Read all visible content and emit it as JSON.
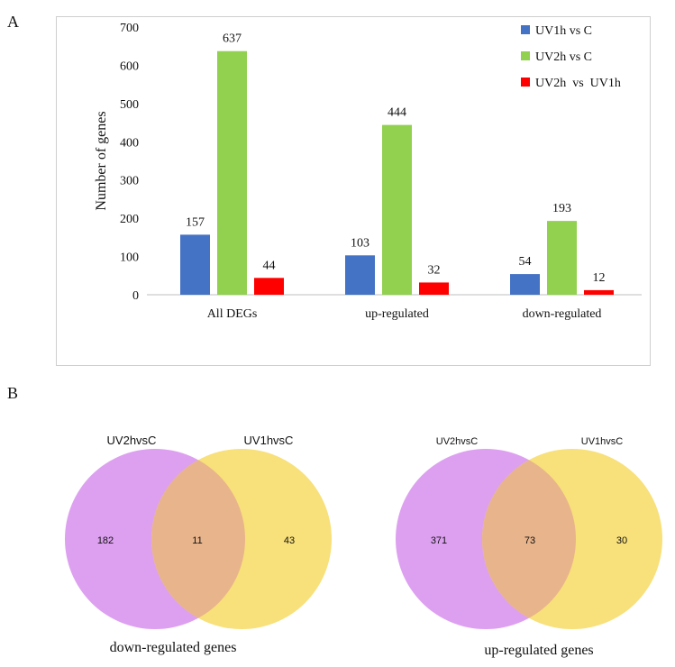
{
  "panel_labels": {
    "a": "A",
    "b": "B"
  },
  "chart_data": [
    {
      "type": "bar",
      "title": "",
      "xlabel": "",
      "ylabel": "Number of genes",
      "ylim": [
        0,
        700
      ],
      "yticks": [
        0,
        100,
        200,
        300,
        400,
        500,
        600,
        700
      ],
      "categories": [
        "All DEGs",
        "up-regulated",
        "down-regulated"
      ],
      "series": [
        {
          "name": "UV1h vs C",
          "color": "#4472C4",
          "values": [
            157,
            103,
            54
          ]
        },
        {
          "name": "UV2h vs C",
          "color": "#92D050",
          "values": [
            637,
            444,
            193
          ]
        },
        {
          "name": "UV2h  vs  UV1h",
          "color": "#FF0000",
          "values": [
            44,
            32,
            12
          ]
        }
      ],
      "legend": "top-right",
      "data_labels": true
    },
    {
      "type": "venn",
      "title": "down-regulated genes",
      "sets": [
        "UV2hvsC",
        "UV1hvsC"
      ],
      "values": {
        "only_left": 182,
        "intersection": 11,
        "only_right": 43
      },
      "colors": {
        "left": "#DDA0F0",
        "right": "#F8E07A",
        "overlap": "#E8B48C"
      }
    },
    {
      "type": "venn",
      "title": "up-regulated genes",
      "sets": [
        "UV2hvsC",
        "UV1hvsC"
      ],
      "values": {
        "only_left": 371,
        "intersection": 73,
        "only_right": 30
      },
      "colors": {
        "left": "#DDA0F0",
        "right": "#F8E07A",
        "overlap": "#E8B48C"
      }
    }
  ]
}
